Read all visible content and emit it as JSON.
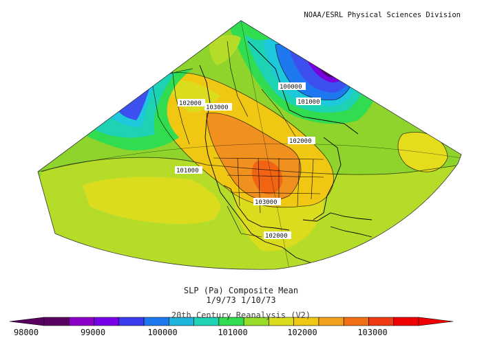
{
  "credit": "NOAA/ESRL Physical Sciences Division",
  "title_line1": "SLP (Pa) Composite Mean",
  "title_line2": "1/9/73 1/10/73",
  "title_line3": "20th Century Reanalysis (V2)",
  "contour_labels": [
    "100000",
    "101000",
    "102000",
    "103000",
    "101000",
    "102000",
    "103000",
    "102000"
  ],
  "colorbar": {
    "ticks": [
      "98000",
      "99000",
      "100000",
      "101000",
      "102000",
      "103000"
    ],
    "colors": [
      "#5a0060",
      "#8c00c8",
      "#7800e6",
      "#3c3cf0",
      "#1e78f0",
      "#1eb4dc",
      "#1ed2b4",
      "#32dc50",
      "#96dc28",
      "#dcdc1e",
      "#f0c814",
      "#f0a01e",
      "#f06e14",
      "#f03c14",
      "#f00000"
    ]
  },
  "colors": {
    "land_bg": "#8ed42c",
    "mid_green": "#b4dc28",
    "yellow": "#e6dc1e",
    "light_orange": "#f0c814",
    "orange": "#f0901e",
    "dark_orange": "#f06414",
    "red": "#f03c14",
    "cyan": "#1ec8dc",
    "teal": "#1ed2a0",
    "blue": "#3c50f0",
    "purple": "#7800dc",
    "dark_purple": "#50006e"
  }
}
